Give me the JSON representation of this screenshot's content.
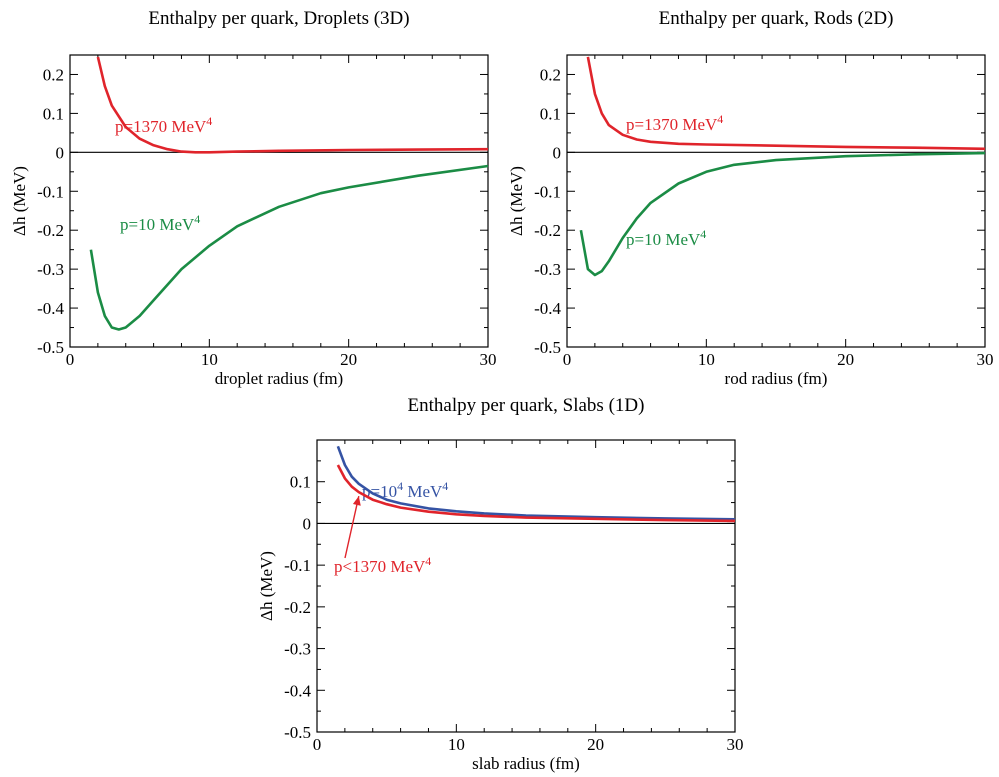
{
  "colors": {
    "red": "#e0242b",
    "green": "#1b8c45",
    "blue": "#3553a4",
    "axis": "#000000"
  },
  "chart_data": [
    {
      "type": "line",
      "title": "Enthalpy per quark, Droplets (3D)",
      "xlabel": "droplet radius (fm)",
      "ylabel": "Δh (MeV)",
      "xlim": [
        0,
        30
      ],
      "ylim": [
        -0.5,
        0.25
      ],
      "xticks": [
        0,
        10,
        20,
        30
      ],
      "xtick_labels": [
        "0",
        "10",
        "20",
        "30"
      ],
      "yticks": [
        -0.5,
        -0.4,
        -0.3,
        -0.2,
        -0.1,
        0,
        0.1,
        0.2
      ],
      "ytick_labels": [
        "-0.5",
        "-0.4",
        "-0.3",
        "-0.2",
        "-0.1",
        "0",
        "0.1",
        "0.2"
      ],
      "series": [
        {
          "color": "red",
          "label_base": "p=1370 MeV",
          "label_sup": "4",
          "x": [
            2.0,
            2.5,
            3,
            4,
            5,
            6,
            7,
            8,
            9,
            10,
            12,
            15,
            20,
            25,
            30
          ],
          "y": [
            0.245,
            0.17,
            0.12,
            0.065,
            0.035,
            0.018,
            0.008,
            0.002,
            0.0,
            0.0,
            0.002,
            0.004,
            0.006,
            0.007,
            0.008
          ]
        },
        {
          "color": "green",
          "label_base": "p=10 MeV",
          "label_sup": "4",
          "x": [
            1.5,
            2,
            2.5,
            3,
            3.5,
            4,
            5,
            6,
            7,
            8,
            10,
            12,
            15,
            18,
            20,
            25,
            30
          ],
          "y": [
            -0.25,
            -0.36,
            -0.42,
            -0.45,
            -0.455,
            -0.45,
            -0.42,
            -0.38,
            -0.34,
            -0.3,
            -0.24,
            -0.19,
            -0.14,
            -0.105,
            -0.09,
            -0.06,
            -0.035
          ]
        }
      ]
    },
    {
      "type": "line",
      "title": "Enthalpy per quark, Rods (2D)",
      "xlabel": "rod radius (fm)",
      "ylabel": "Δh (MeV)",
      "xlim": [
        0,
        30
      ],
      "ylim": [
        -0.5,
        0.25
      ],
      "xticks": [
        0,
        10,
        20,
        30
      ],
      "xtick_labels": [
        "0",
        "10",
        "20",
        "30"
      ],
      "yticks": [
        -0.5,
        -0.4,
        -0.3,
        -0.2,
        -0.1,
        0,
        0.1,
        0.2
      ],
      "ytick_labels": [
        "-0.5",
        "-0.4",
        "-0.3",
        "-0.2",
        "-0.1",
        "0",
        "0.1",
        "0.2"
      ],
      "series": [
        {
          "color": "red",
          "label_base": "p=1370 MeV",
          "label_sup": "4",
          "x": [
            1.5,
            2,
            2.5,
            3,
            4,
            5,
            6,
            8,
            10,
            15,
            20,
            25,
            30
          ],
          "y": [
            0.245,
            0.15,
            0.1,
            0.07,
            0.045,
            0.033,
            0.027,
            0.022,
            0.02,
            0.017,
            0.014,
            0.012,
            0.009
          ]
        },
        {
          "color": "green",
          "label_base": "p=10 MeV",
          "label_sup": "4",
          "x": [
            1.0,
            1.5,
            2,
            2.5,
            3,
            4,
            5,
            6,
            8,
            10,
            12,
            15,
            20,
            25,
            30
          ],
          "y": [
            -0.2,
            -0.3,
            -0.315,
            -0.305,
            -0.28,
            -0.22,
            -0.17,
            -0.13,
            -0.08,
            -0.05,
            -0.032,
            -0.02,
            -0.01,
            -0.005,
            -0.002
          ]
        }
      ]
    },
    {
      "type": "line",
      "title": "Enthalpy per quark, Slabs (1D)",
      "xlabel": "slab radius (fm)",
      "ylabel": "Δh (MeV)",
      "xlim": [
        0,
        30
      ],
      "ylim": [
        -0.5,
        0.2
      ],
      "xticks": [
        0,
        10,
        20,
        30
      ],
      "xtick_labels": [
        "0",
        "10",
        "20",
        "30"
      ],
      "yticks": [
        -0.5,
        -0.4,
        -0.3,
        -0.2,
        -0.1,
        0,
        0.1
      ],
      "ytick_labels": [
        "-0.5",
        "-0.4",
        "-0.3",
        "-0.2",
        "-0.1",
        "0",
        "0.1"
      ],
      "series": [
        {
          "color": "blue",
          "label_base": "p=10",
          "label_mid": " MeV",
          "label_sup": "4",
          "label_sup_mid": "4",
          "x": [
            1.5,
            2,
            2.5,
            3,
            4,
            5,
            6,
            8,
            10,
            12,
            15,
            20,
            25,
            30
          ],
          "y": [
            0.185,
            0.14,
            0.112,
            0.095,
            0.072,
            0.057,
            0.048,
            0.036,
            0.029,
            0.024,
            0.019,
            0.015,
            0.012,
            0.01
          ]
        },
        {
          "color": "red",
          "label_base": "p<1370 MeV",
          "label_sup": "4",
          "x": [
            1.5,
            2,
            2.5,
            3,
            4,
            5,
            6,
            8,
            10,
            12,
            15,
            20,
            25,
            30
          ],
          "y": [
            0.14,
            0.108,
            0.088,
            0.075,
            0.057,
            0.046,
            0.038,
            0.028,
            0.022,
            0.018,
            0.014,
            0.011,
            0.008,
            0.006
          ]
        }
      ]
    }
  ]
}
